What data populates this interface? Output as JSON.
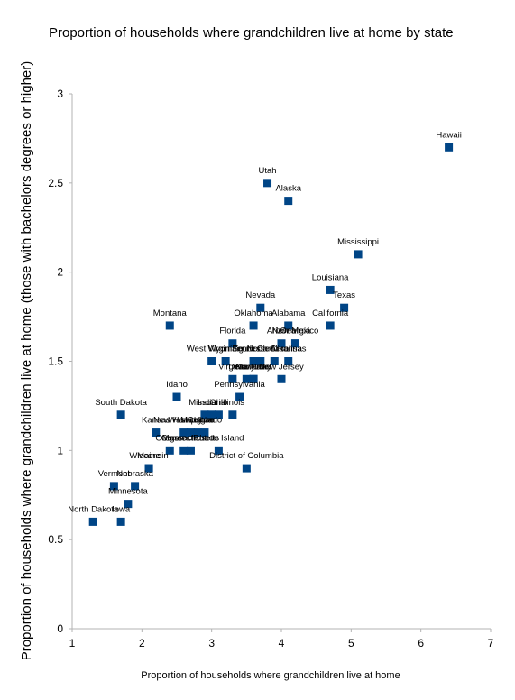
{
  "chart_data": {
    "type": "scatter",
    "title": "Proportion of households where grandchildren live at home by state",
    "xlabel": "Proportion of households where grandchildren live at home",
    "ylabel": "Proportion of households where grandchildren live at home  (those with bachelors degrees or higher)",
    "xlim": [
      1,
      7
    ],
    "ylim": [
      0,
      3
    ],
    "x_ticks": [
      "1",
      "2",
      "3",
      "4",
      "5",
      "6",
      "7"
    ],
    "y_ticks": [
      "0",
      "0.5",
      "1",
      "1.5",
      "2",
      "2.5",
      "3"
    ],
    "grid": false,
    "legend": "none",
    "marker_color": "#004586",
    "points": [
      {
        "label": "Hawaii",
        "x": 6.4,
        "y": 2.7
      },
      {
        "label": "Utah",
        "x": 3.8,
        "y": 2.5
      },
      {
        "label": "Alaska",
        "x": 4.1,
        "y": 2.4
      },
      {
        "label": "Mississippi",
        "x": 5.1,
        "y": 2.1
      },
      {
        "label": "Louisiana",
        "x": 4.7,
        "y": 1.9
      },
      {
        "label": "Texas",
        "x": 4.9,
        "y": 1.8
      },
      {
        "label": "Nevada",
        "x": 3.7,
        "y": 1.8
      },
      {
        "label": "Montana",
        "x": 2.4,
        "y": 1.7
      },
      {
        "label": "Oklahoma",
        "x": 3.6,
        "y": 1.7
      },
      {
        "label": "Alabama",
        "x": 4.1,
        "y": 1.7
      },
      {
        "label": "California",
        "x": 4.7,
        "y": 1.7
      },
      {
        "label": "Florida",
        "x": 3.3,
        "y": 1.6
      },
      {
        "label": "Arizona",
        "x": 4.0,
        "y": 1.6
      },
      {
        "label": "Georgia",
        "x": 4.2,
        "y": 1.6
      },
      {
        "label": "New Mexico",
        "x": 4.2,
        "y": 1.6
      },
      {
        "label": "Wyoming",
        "x": 3.2,
        "y": 1.5
      },
      {
        "label": "Tennessee",
        "x": 3.6,
        "y": 1.5
      },
      {
        "label": "South Carolina",
        "x": 3.7,
        "y": 1.5
      },
      {
        "label": "North Carolina",
        "x": 3.9,
        "y": 1.5
      },
      {
        "label": "Arkansas",
        "x": 4.1,
        "y": 1.5
      },
      {
        "label": "West Virginia",
        "x": 3.0,
        "y": 1.5
      },
      {
        "label": "Virginia",
        "x": 3.3,
        "y": 1.4
      },
      {
        "label": "Delaware",
        "x": 3.5,
        "y": 1.4
      },
      {
        "label": "Maryland",
        "x": 3.6,
        "y": 1.4
      },
      {
        "label": "Kentucky",
        "x": 3.6,
        "y": 1.4
      },
      {
        "label": "New Jersey",
        "x": 4.0,
        "y": 1.4
      },
      {
        "label": "Idaho",
        "x": 2.5,
        "y": 1.3
      },
      {
        "label": "Missouri",
        "x": 2.9,
        "y": 1.2
      },
      {
        "label": "Indiana",
        "x": 3.0,
        "y": 1.2
      },
      {
        "label": "Ohio",
        "x": 3.1,
        "y": 1.2
      },
      {
        "label": "Illinois",
        "x": 3.3,
        "y": 1.2
      },
      {
        "label": "Pennsylvania",
        "x": 3.4,
        "y": 1.3
      },
      {
        "label": "South Dakota",
        "x": 1.7,
        "y": 1.2
      },
      {
        "label": "New Hampshire",
        "x": 2.6,
        "y": 1.1
      },
      {
        "label": "Washington",
        "x": 2.7,
        "y": 1.1
      },
      {
        "label": "Michigan",
        "x": 2.8,
        "y": 1.1
      },
      {
        "label": "Colorado",
        "x": 2.9,
        "y": 1.1
      },
      {
        "label": "Kansas",
        "x": 2.2,
        "y": 1.1
      },
      {
        "label": "Oregon",
        "x": 2.4,
        "y": 1.0
      },
      {
        "label": "Connecticut",
        "x": 2.6,
        "y": 1.0
      },
      {
        "label": "Rhode Island",
        "x": 3.1,
        "y": 1.0
      },
      {
        "label": "Maine",
        "x": 2.1,
        "y": 0.9
      },
      {
        "label": "Massachusetts",
        "x": 2.7,
        "y": 1.0
      },
      {
        "label": "District of Columbia",
        "x": 3.5,
        "y": 0.9
      },
      {
        "label": "Wisconsin",
        "x": 2.1,
        "y": 0.9
      },
      {
        "label": "Vermont",
        "x": 1.6,
        "y": 0.8
      },
      {
        "label": "Nebraska",
        "x": 1.9,
        "y": 0.8
      },
      {
        "label": "Minnesota",
        "x": 1.8,
        "y": 0.7
      },
      {
        "label": "North Dakota",
        "x": 1.3,
        "y": 0.6
      },
      {
        "label": "Iowa",
        "x": 1.7,
        "y": 0.6
      }
    ]
  }
}
